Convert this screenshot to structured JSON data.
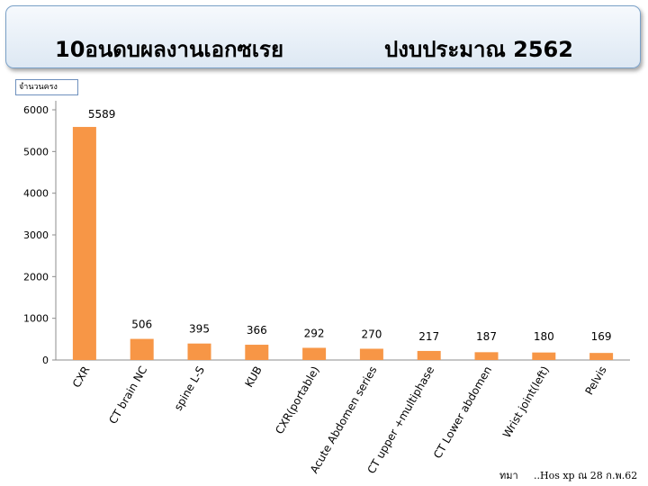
{
  "header": {
    "title_left": "10อนดบผลงานเอกซเรย",
    "title_right": "ปงบประมาณ  2562"
  },
  "footer": {
    "note_left": "ทมา",
    "note_right": "..Hos xp ณ 28 ก.พ.62"
  },
  "chart_data": {
    "type": "bar",
    "ylabel": "จำนวนครง",
    "xlabel": "",
    "ylim": [
      0,
      6000
    ],
    "yticks": [
      0,
      1000,
      2000,
      3000,
      4000,
      5000,
      6000
    ],
    "grid": false,
    "bar_color": "#f79646",
    "categories": [
      "CXR",
      "CT brain NC",
      "spine L-S",
      "KUB",
      "CXR(portable)",
      "Acute Abdomen series",
      "CT upper +multiphase",
      "CT Lower abdomen",
      "Wrist joint(left)",
      "Pelvis"
    ],
    "values": [
      5589,
      506,
      395,
      366,
      292,
      270,
      217,
      187,
      180,
      169
    ]
  }
}
